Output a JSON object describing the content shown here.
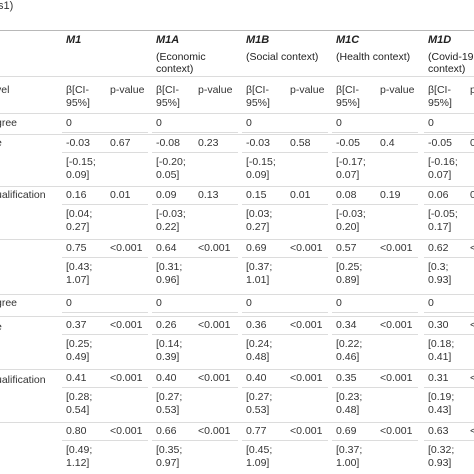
{
  "caption_fragment": "s1)",
  "models": [
    {
      "name": "M1",
      "context": ""
    },
    {
      "name": "M1A",
      "context": "(Economic context)"
    },
    {
      "name": "M1B",
      "context": "(Social context)"
    },
    {
      "name": "M1C",
      "context": "(Health context)"
    },
    {
      "name": "M1D",
      "context": "(Covid-19 context)"
    }
  ],
  "stat_headers": {
    "beta": "β[CI-95%]",
    "p": "p-value"
  },
  "row_labels": [
    "vel",
    "gree",
    "e",
    "ualification",
    "",
    "gree",
    "e",
    "ualification",
    ""
  ],
  "rows": [
    {
      "cells": [
        [
          "β[CI-95%]",
          "p-value"
        ],
        [
          "β[CI-95%]",
          "p-value"
        ],
        [
          "β[CI-95%]",
          "p-value"
        ],
        [
          "β[CI-95%]",
          "p-value"
        ],
        [
          "β[CI-95%]",
          "p-value"
        ]
      ]
    },
    {
      "cells": [
        [
          "0",
          ""
        ],
        [
          "0",
          ""
        ],
        [
          "0",
          ""
        ],
        [
          "0",
          ""
        ],
        [
          "0",
          ""
        ]
      ]
    },
    {
      "cells": [
        [
          "-0.03 [-0.15; 0.09]",
          "0.67"
        ],
        [
          "-0.08 [-0.20; 0.05]",
          "0.23"
        ],
        [
          "-0.03 [-0.15; 0.09]",
          "0.58"
        ],
        [
          "-0.05 [-0.17; 0.07]",
          "0.4"
        ],
        [
          "-0.05 [-0.16; 0.07]",
          "0"
        ]
      ]
    },
    {
      "cells": [
        [
          "0.16 [0.04; 0.27]",
          "0.01"
        ],
        [
          "0.09 [-0.03; 0.22]",
          "0.13"
        ],
        [
          "0.15 [0.03; 0.27]",
          "0.01"
        ],
        [
          "0.08 [-0.03; 0.20]",
          "0.19"
        ],
        [
          "0.06 [-0.05; 0.17]",
          "0"
        ]
      ]
    },
    {
      "cells": [
        [
          "0.75 [0.43; 1.07]",
          "<0.001"
        ],
        [
          "0.64 [0.31; 0.96]",
          "<0.001"
        ],
        [
          "0.69 [0.37; 1.01]",
          "<0.001"
        ],
        [
          "0.57 [0.25; 0.89]",
          "<0.001"
        ],
        [
          "0.62 [0.3; 0.93]",
          "<"
        ]
      ]
    },
    {
      "cells": [
        [
          "0",
          ""
        ],
        [
          "0",
          ""
        ],
        [
          "0",
          ""
        ],
        [
          "0",
          ""
        ],
        [
          "0",
          ""
        ]
      ]
    },
    {
      "cells": [
        [
          "0.37 [0.25; 0.49]",
          "<0.001"
        ],
        [
          "0.26 [0.14; 0.39]",
          "<0.001"
        ],
        [
          "0.36 [0.24; 0.48]",
          "<0.001"
        ],
        [
          "0.34 [0.22; 0.46]",
          "<0.001"
        ],
        [
          "0.30 [0.18; 0.41]",
          "<"
        ]
      ]
    },
    {
      "cells": [
        [
          "0.41 [0.28; 0.54]",
          "<0.001"
        ],
        [
          "0.40 [0.27; 0.53]",
          "<0.001"
        ],
        [
          "0.40 [0.27; 0.53]",
          "<0.001"
        ],
        [
          "0.35 [0.23; 0.48]",
          "<0.001"
        ],
        [
          "0.31 [0.19; 0.43]",
          "<"
        ]
      ]
    },
    {
      "cells": [
        [
          "0.80 [0.49; 1.12]",
          "<0.001"
        ],
        [
          "0.66 [0.35; 0.97]",
          "<0.001"
        ],
        [
          "0.77 [0.45; 1.09]",
          "<0.001"
        ],
        [
          "0.69 [0.37; 1.00]",
          "<0.001"
        ],
        [
          "0.63 [0.32; 0.93]",
          "<"
        ]
      ]
    }
  ]
}
